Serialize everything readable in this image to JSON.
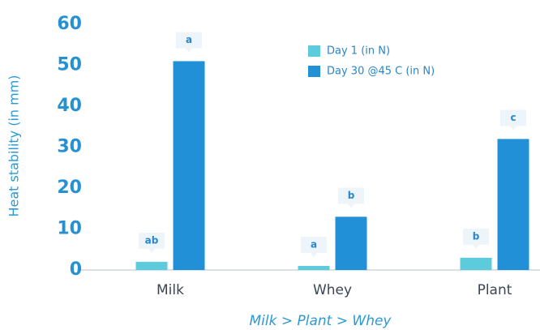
{
  "chart_data": {
    "type": "bar",
    "ylabel": "Heat stability (in mm)",
    "xlabel": "Milk > Plant > Whey",
    "categories": [
      "Milk",
      "Whey",
      "Plant"
    ],
    "series": [
      {
        "name": "Day 1 (in N)",
        "color": "#5ccbdc",
        "values": [
          2,
          1,
          3
        ],
        "letters": [
          "ab",
          "a",
          "b"
        ]
      },
      {
        "name": "Day 30 @45 C (in N)",
        "color": "#2290d6",
        "values": [
          51,
          13,
          32
        ],
        "letters": [
          "a",
          "b",
          "c"
        ]
      }
    ],
    "ylim": [
      0,
      60
    ],
    "yticks": [
      0,
      10,
      20,
      30,
      40,
      50,
      60
    ],
    "grid": false,
    "legend": "top-right"
  }
}
